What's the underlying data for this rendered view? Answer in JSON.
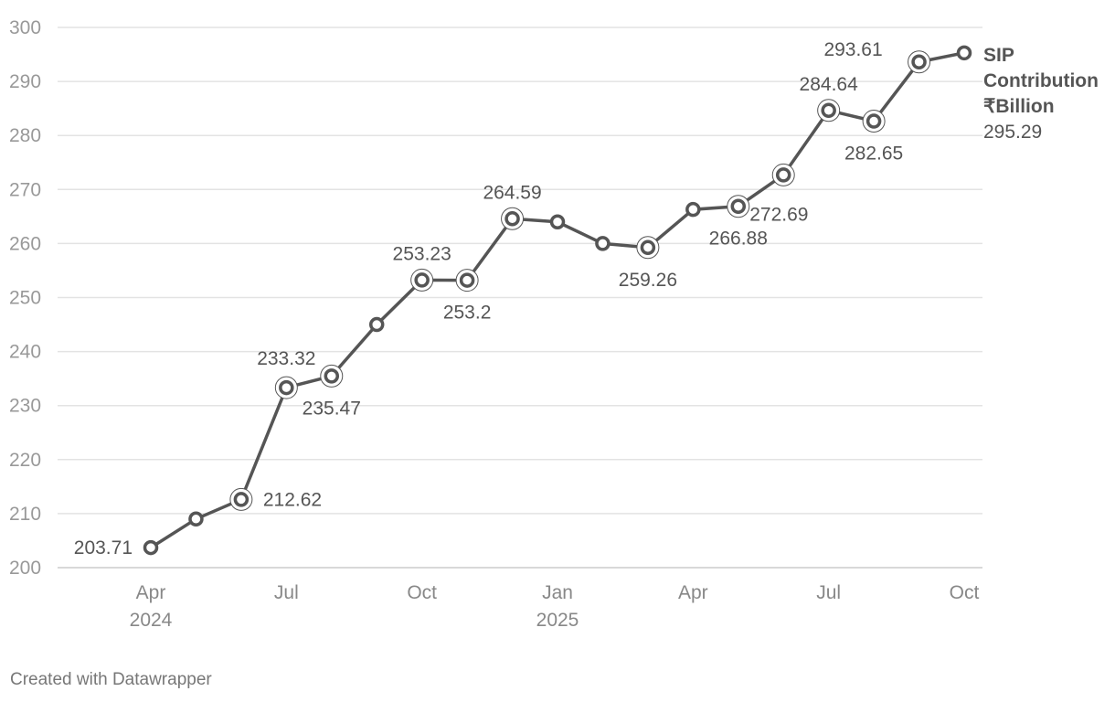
{
  "chart_data": {
    "type": "line",
    "x": [
      "2024-04",
      "2024-05",
      "2024-06",
      "2024-07",
      "2024-08",
      "2024-09",
      "2024-10",
      "2024-11",
      "2024-12",
      "2025-01",
      "2025-02",
      "2025-03",
      "2025-04",
      "2025-05",
      "2025-06",
      "2025-07",
      "2025-08",
      "2025-09",
      "2025-10"
    ],
    "series": [
      {
        "name": "SIP Contribution ₹Billion",
        "name_lines": [
          "SIP",
          "Contribution",
          "₹Billion"
        ],
        "values": [
          203.71,
          209.0,
          212.62,
          233.32,
          235.47,
          245.0,
          253.23,
          253.2,
          264.59,
          264.0,
          260.0,
          259.26,
          266.3,
          266.88,
          272.69,
          284.64,
          282.65,
          293.61,
          295.29
        ],
        "end_value_label": "295.29",
        "color": "#555555"
      }
    ],
    "data_labels": [
      {
        "index": 0,
        "text": "203.71"
      },
      {
        "index": 2,
        "text": "212.62"
      },
      {
        "index": 3,
        "text": "233.32"
      },
      {
        "index": 4,
        "text": "235.47"
      },
      {
        "index": 6,
        "text": "253.23"
      },
      {
        "index": 7,
        "text": "253.2"
      },
      {
        "index": 8,
        "text": "264.59"
      },
      {
        "index": 11,
        "text": "259.26"
      },
      {
        "index": 13,
        "text": "266.88"
      },
      {
        "index": 14,
        "text": "272.69"
      },
      {
        "index": 15,
        "text": "284.64"
      },
      {
        "index": 16,
        "text": "282.65"
      },
      {
        "index": 17,
        "text": "293.61"
      }
    ],
    "highlighted_points": [
      2,
      3,
      4,
      6,
      7,
      8,
      11,
      13,
      14,
      15,
      16,
      17
    ],
    "y_ticks": [
      200,
      210,
      220,
      230,
      240,
      250,
      260,
      270,
      280,
      290,
      300
    ],
    "x_ticks": [
      {
        "index": 0,
        "label": "Apr",
        "year": "2024"
      },
      {
        "index": 3,
        "label": "Jul"
      },
      {
        "index": 6,
        "label": "Oct"
      },
      {
        "index": 9,
        "label": "Jan",
        "year": "2025"
      },
      {
        "index": 12,
        "label": "Apr"
      },
      {
        "index": 15,
        "label": "Jul"
      },
      {
        "index": 18,
        "label": "Oct"
      }
    ],
    "ylim": [
      200,
      300
    ],
    "grid": true,
    "title": "",
    "xlabel": "",
    "ylabel": ""
  },
  "footer": {
    "credit": "Created with Datawrapper"
  }
}
